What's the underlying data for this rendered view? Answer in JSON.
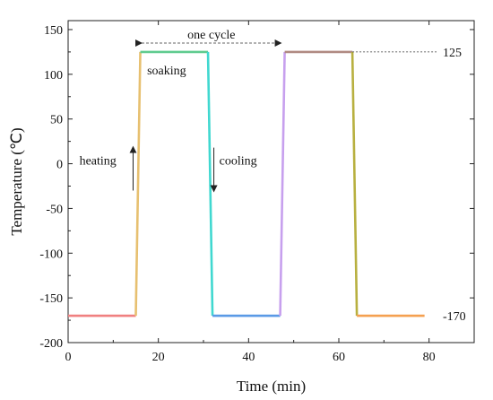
{
  "chart_data": {
    "type": "line",
    "xlabel": "Time (min)",
    "ylabel": "Temperature (℃)",
    "xlim": [
      0,
      90
    ],
    "ylim": [
      -200,
      160
    ],
    "x_ticks": [
      0,
      20,
      40,
      60,
      80
    ],
    "y_ticks": [
      -200,
      -150,
      -100,
      -50,
      0,
      50,
      100,
      150
    ],
    "grid": false,
    "segments": [
      {
        "x": [
          0,
          15
        ],
        "y": [
          -170,
          -170
        ],
        "color": "#f08080"
      },
      {
        "x": [
          15,
          16
        ],
        "y": [
          -170,
          125
        ],
        "color": "#e7c070"
      },
      {
        "x": [
          16,
          31
        ],
        "y": [
          125,
          125
        ],
        "color": "#5fcb8f"
      },
      {
        "x": [
          31,
          32
        ],
        "y": [
          125,
          -170
        ],
        "color": "#40d8d0"
      },
      {
        "x": [
          32,
          47
        ],
        "y": [
          -170,
          -170
        ],
        "color": "#5a9ae6"
      },
      {
        "x": [
          47,
          48
        ],
        "y": [
          -170,
          125
        ],
        "color": "#c7a0ee"
      },
      {
        "x": [
          48,
          63
        ],
        "y": [
          125,
          125
        ],
        "color": "#b08a82"
      },
      {
        "x": [
          63,
          64
        ],
        "y": [
          125,
          -170
        ],
        "color": "#b8b040"
      },
      {
        "x": [
          64,
          79
        ],
        "y": [
          -170,
          -170
        ],
        "color": "#f5a050"
      }
    ],
    "annotations": {
      "one_cycle": "one cycle",
      "soaking": "soaking",
      "heating": "heating",
      "cooling": "cooling",
      "high_label": "125",
      "low_label": "-170"
    }
  }
}
